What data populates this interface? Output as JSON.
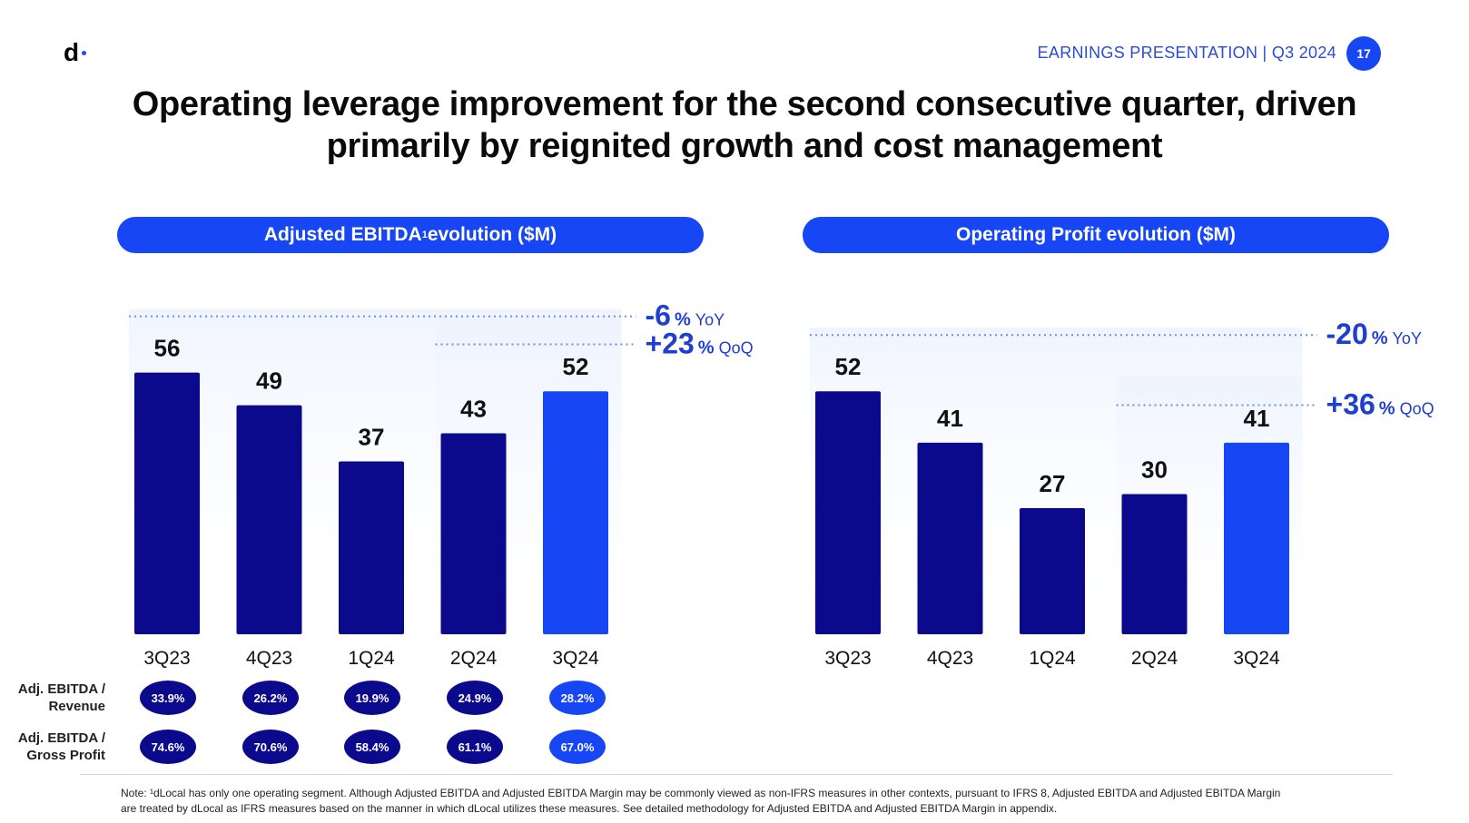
{
  "header": {
    "logo_text": "d",
    "presentation_label": "EARNINGS PRESENTATION | Q3 2024",
    "page_number": "17"
  },
  "title_line1": "Operating leverage improvement for the second consecutive quarter, driven",
  "title_line2": "primarily by reignited growth and cost management",
  "colors": {
    "accent": "#1747f5",
    "dark_bar": "#0c0a8c",
    "highlight_bar": "#1747f5",
    "text_blue": "#1e3fd0"
  },
  "chart_data": [
    {
      "type": "bar",
      "title": "Adjusted EBITDA",
      "title_sup": "1",
      "title_suffix": " evolution ($M)",
      "categories": [
        "3Q23",
        "4Q23",
        "1Q24",
        "2Q24",
        "3Q24"
      ],
      "values": [
        56,
        49,
        37,
        43,
        52
      ],
      "ylim": [
        0,
        60
      ],
      "highlight_index": 4,
      "qoq": {
        "value": "+23",
        "unit": "%",
        "label": "QoQ"
      },
      "yoy": {
        "value": "-6",
        "unit": "%",
        "label": "YoY"
      }
    },
    {
      "type": "bar",
      "title": "Operating Profit evolution ($M)",
      "title_sup": "",
      "title_suffix": "",
      "categories": [
        "3Q23",
        "4Q23",
        "1Q24",
        "2Q24",
        "3Q24"
      ],
      "values": [
        52,
        41,
        27,
        30,
        41
      ],
      "ylim": [
        0,
        60
      ],
      "highlight_index": 4,
      "qoq": {
        "value": "+36",
        "unit": "%",
        "label": "QoQ"
      },
      "yoy": {
        "value": "-20",
        "unit": "%",
        "label": "YoY"
      }
    }
  ],
  "metrics": {
    "revenue_label_line1": "Adj. EBITDA /",
    "revenue_label_line2": "Revenue",
    "revenue_values": [
      "33.9%",
      "26.2%",
      "19.9%",
      "24.9%",
      "28.2%"
    ],
    "gp_label_line1": "Adj. EBITDA /",
    "gp_label_line2": "Gross Profit",
    "gp_values": [
      "74.6%",
      "70.6%",
      "58.4%",
      "61.1%",
      "67.0%"
    ]
  },
  "note_line1": "Note: ¹dLocal has only one operating segment. Although Adjusted EBITDA and Adjusted EBITDA Margin may be commonly viewed as non-IFRS measures in other contexts, pursuant to IFRS 8, Adjusted EBITDA and Adjusted EBITDA Margin",
  "note_line2": "are treated by dLocal as IFRS measures based on the manner in which dLocal utilizes these measures. See detailed methodology for Adjusted EBITDA and Adjusted EBITDA Margin in appendix."
}
